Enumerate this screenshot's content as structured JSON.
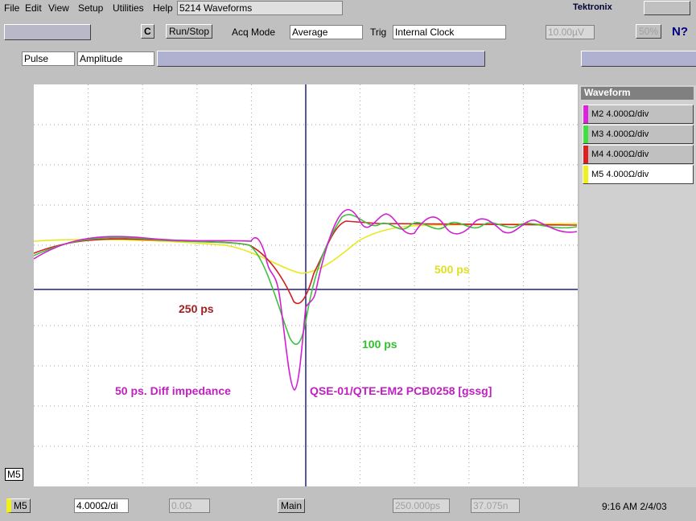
{
  "menu": [
    "File",
    "Edit",
    "View",
    "Setup",
    "Utilities",
    "Help"
  ],
  "window_title": "5214 Waveforms",
  "brand": "Tektronix",
  "toolbar": {
    "c_button": "C",
    "run_stop": "Run/Stop",
    "acq_mode_label": "Acq Mode",
    "acq_mode": "Average",
    "trig_label": "Trig",
    "trig_source": "Internal Clock",
    "trig_level": "10.00µV",
    "percent": "50%",
    "help": "N?"
  },
  "measure": {
    "type": "Pulse",
    "parameter": "Amplitude"
  },
  "panel": {
    "title": "Waveform",
    "waveforms": [
      "M2 4.000Ω/div",
      "M3 4.000Ω/div",
      "M4 4.000Ω/div",
      "M5 4.000Ω/div"
    ]
  },
  "annotations": {
    "red": "250 ps",
    "yellow": "500 ps",
    "green": "100 ps",
    "magenta": "50 ps. Diff impedance",
    "board": "QSE-01/QTE-EM2  PCB0258 [gssg]"
  },
  "marker": "M5",
  "status": {
    "channel": "M5",
    "scale": "4.000Ω/di",
    "offset": "0.0Ω",
    "timebase": "Main",
    "horizontal_scale": "250.000ps",
    "position": "37.075n",
    "clock": "9:16 AM 2/4/03"
  }
}
